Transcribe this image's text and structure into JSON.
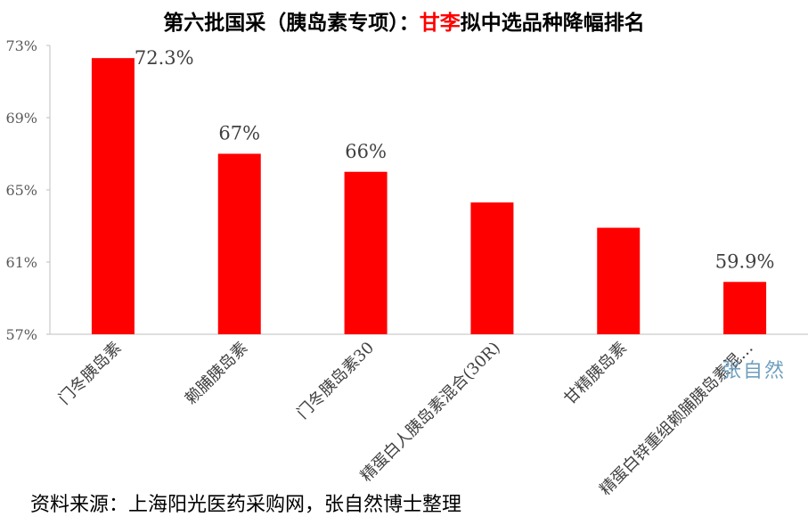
{
  "title": {
    "prefix": "第六批国采（胰岛素专项）：",
    "highlight": "甘李",
    "suffix": "拟中选品种降幅排名"
  },
  "source": "资料来源：上海阳光医药采购网，张自然博士整理",
  "watermark": "张自然",
  "colors": {
    "bar": "#ff0000",
    "highlight": "#ff0000",
    "axis": "#bfbfbf"
  },
  "chart_data": {
    "type": "bar",
    "title": "第六批国采（胰岛素专项）：甘李拟中选品种降幅排名",
    "categories": [
      "门冬胰岛素",
      "赖脯胰岛素",
      "门冬胰岛素30",
      "精蛋白人胰岛素混合(30R)",
      "甘精胰岛素",
      "精蛋白锌重组赖脯胰岛素混…"
    ],
    "values": [
      72.3,
      67,
      66,
      64.3,
      62.9,
      59.9
    ],
    "data_labels": [
      "72.3%",
      "67%",
      "66%",
      "",
      "",
      "59.9%"
    ],
    "ylim": [
      57,
      73
    ],
    "yticks": [
      "57%",
      "61%",
      "65%",
      "69%",
      "73%"
    ],
    "grid": false,
    "xlabel": "",
    "ylabel": ""
  }
}
